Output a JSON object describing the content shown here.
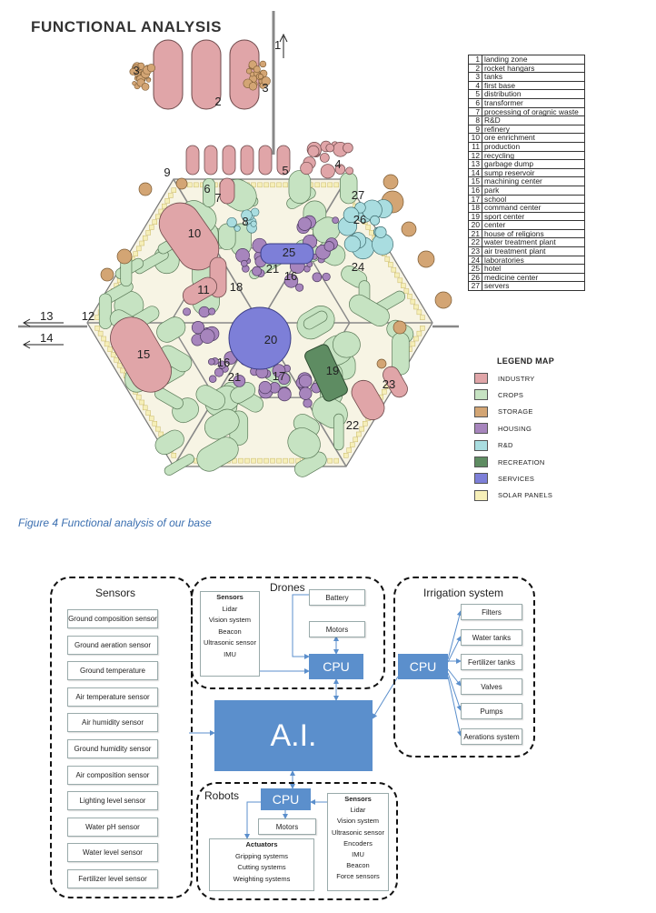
{
  "map": {
    "title": "FUNCTIONAL ANALYSIS",
    "caption": "Figure 4 Functional analysis of our base",
    "arrows": [
      {
        "label": "1"
      },
      {
        "label": "13"
      },
      {
        "label": "14"
      }
    ],
    "zone_labels": [
      "2",
      "3",
      "3",
      "4",
      "5",
      "6",
      "7",
      "8",
      "9",
      "10",
      "11",
      "12",
      "15",
      "16",
      "16",
      "17",
      "18",
      "19",
      "20",
      "21",
      "21",
      "22",
      "23",
      "24",
      "25",
      "26",
      "27"
    ],
    "key": [
      {
        "num": "1",
        "label": "landing zone"
      },
      {
        "num": "2",
        "label": "rocket hangars"
      },
      {
        "num": "3",
        "label": "tanks"
      },
      {
        "num": "4",
        "label": "first base"
      },
      {
        "num": "5",
        "label": "distribution"
      },
      {
        "num": "6",
        "label": "transformer"
      },
      {
        "num": "7",
        "label": "processing of oragnic waste"
      },
      {
        "num": "8",
        "label": "R&D"
      },
      {
        "num": "9",
        "label": "refinery"
      },
      {
        "num": "10",
        "label": "ore enrichment"
      },
      {
        "num": "11",
        "label": "production"
      },
      {
        "num": "12",
        "label": "recycling"
      },
      {
        "num": "13",
        "label": "garbage dump"
      },
      {
        "num": "14",
        "label": "sump reservoir"
      },
      {
        "num": "15",
        "label": "machining center"
      },
      {
        "num": "16",
        "label": "park"
      },
      {
        "num": "17",
        "label": "school"
      },
      {
        "num": "18",
        "label": "command center"
      },
      {
        "num": "19",
        "label": "sport center"
      },
      {
        "num": "20",
        "label": "center"
      },
      {
        "num": "21",
        "label": "house of religions"
      },
      {
        "num": "22",
        "label": "water treatment plant"
      },
      {
        "num": "23",
        "label": "air treatment plant"
      },
      {
        "num": "24",
        "label": "laboratories"
      },
      {
        "num": "25",
        "label": "hotel"
      },
      {
        "num": "26",
        "label": "medicine center"
      },
      {
        "num": "27",
        "label": "servers"
      }
    ],
    "legend_title": "LEGEND MAP",
    "legend": [
      {
        "label": "INDUSTRY",
        "color": "#e0a5a8"
      },
      {
        "label": "CROPS",
        "color": "#c6e3c2"
      },
      {
        "label": "STORAGE",
        "color": "#d3a574"
      },
      {
        "label": "HOUSING",
        "color": "#a785bd"
      },
      {
        "label": "R&D",
        "color": "#a9dde0"
      },
      {
        "label": "RECREATION",
        "color": "#5e8c62"
      },
      {
        "label": "SERVICES",
        "color": "#7d7fd8"
      },
      {
        "label": "SOLAR PANELS",
        "color": "#f6efb8"
      }
    ]
  },
  "flow": {
    "sensors": {
      "title": "Sensors",
      "items": [
        "Ground composition sensor",
        "Ground aeration sensor",
        "Ground temperature",
        "Air temperature sensor",
        "Air humidity sensor",
        "Ground humidity sensor",
        "Air composition sensor",
        "Lighting level sensor",
        "Water pH sensor",
        "Water level sensor",
        "Fertilizer level sensor"
      ]
    },
    "drones": {
      "title": "Drones",
      "sensors_head": "Sensors",
      "sensors": [
        "Lidar",
        "Vision system",
        "Beacon",
        "Ultrasonic sensor",
        "IMU"
      ],
      "battery": "Battery",
      "motors": "Motors",
      "cpu": "CPU"
    },
    "irrigation": {
      "title": "Irrigation system",
      "cpu": "CPU",
      "items": [
        "Filters",
        "Water tanks",
        "Fertilizer tanks",
        "Valves",
        "Pumps",
        "Aerations system"
      ]
    },
    "ai": "A.I.",
    "robots": {
      "title": "Robots",
      "cpu": "CPU",
      "motors": "Motors",
      "actuators_head": "Actuators",
      "actuators": [
        "Gripping systems",
        "Cutting systems",
        "Weighting systems"
      ],
      "sensors_head": "Sensors",
      "sensors": [
        "Lidar",
        "Vision system",
        "Ultrasonic sensor",
        "Encoders",
        "IMU",
        "Beacon",
        "Force sensors"
      ]
    }
  }
}
